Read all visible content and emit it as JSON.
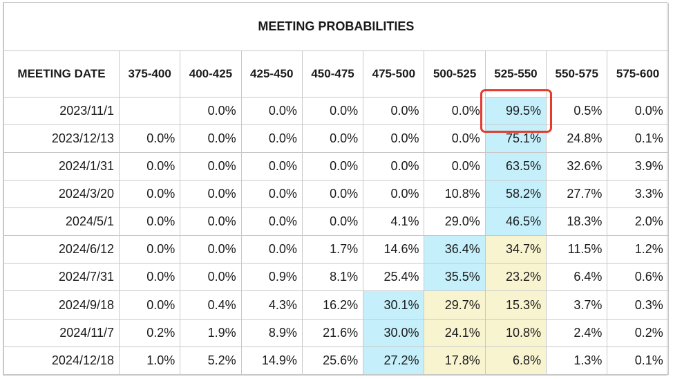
{
  "title": "MEETING PROBABILITIES",
  "columns": {
    "meeting_date": "MEETING DATE",
    "ranges": [
      "375-400",
      "400-425",
      "425-450",
      "450-475",
      "475-500",
      "500-525",
      "525-550",
      "550-575",
      "575-600"
    ]
  },
  "rows": [
    {
      "date": "2023/11/1",
      "cells": [
        "",
        "0.0%",
        "0.0%",
        "0.0%",
        "0.0%",
        "0.0%",
        "99.5%",
        "0.5%",
        "0.0%"
      ]
    },
    {
      "date": "2023/12/13",
      "cells": [
        "0.0%",
        "0.0%",
        "0.0%",
        "0.0%",
        "0.0%",
        "0.0%",
        "75.1%",
        "24.8%",
        "0.1%"
      ]
    },
    {
      "date": "2024/1/31",
      "cells": [
        "0.0%",
        "0.0%",
        "0.0%",
        "0.0%",
        "0.0%",
        "0.0%",
        "63.5%",
        "32.6%",
        "3.9%"
      ]
    },
    {
      "date": "2024/3/20",
      "cells": [
        "0.0%",
        "0.0%",
        "0.0%",
        "0.0%",
        "0.0%",
        "10.8%",
        "58.2%",
        "27.7%",
        "3.3%"
      ]
    },
    {
      "date": "2024/5/1",
      "cells": [
        "0.0%",
        "0.0%",
        "0.0%",
        "0.0%",
        "4.1%",
        "29.0%",
        "46.5%",
        "18.3%",
        "2.0%"
      ]
    },
    {
      "date": "2024/6/12",
      "cells": [
        "0.0%",
        "0.0%",
        "0.0%",
        "1.7%",
        "14.6%",
        "36.4%",
        "34.7%",
        "11.5%",
        "1.2%"
      ]
    },
    {
      "date": "2024/7/31",
      "cells": [
        "0.0%",
        "0.0%",
        "0.9%",
        "8.1%",
        "25.4%",
        "35.5%",
        "23.2%",
        "6.4%",
        "0.6%"
      ]
    },
    {
      "date": "2024/9/18",
      "cells": [
        "0.0%",
        "0.4%",
        "4.3%",
        "16.2%",
        "30.1%",
        "29.7%",
        "15.3%",
        "3.7%",
        "0.3%"
      ]
    },
    {
      "date": "2024/11/7",
      "cells": [
        "0.2%",
        "1.9%",
        "8.9%",
        "21.6%",
        "30.0%",
        "24.1%",
        "10.8%",
        "2.4%",
        "0.2%"
      ]
    },
    {
      "date": "2024/12/18",
      "cells": [
        "1.0%",
        "5.2%",
        "14.9%",
        "25.6%",
        "27.2%",
        "17.8%",
        "6.8%",
        "1.3%",
        "0.1%"
      ]
    }
  ],
  "shading": [
    [
      null,
      null,
      null,
      null,
      null,
      null,
      "cyan",
      null,
      null
    ],
    [
      null,
      null,
      null,
      null,
      null,
      null,
      "cyan",
      null,
      null
    ],
    [
      null,
      null,
      null,
      null,
      null,
      null,
      "cyan",
      null,
      null
    ],
    [
      null,
      null,
      null,
      null,
      null,
      null,
      "cyan",
      null,
      null
    ],
    [
      null,
      null,
      null,
      null,
      null,
      null,
      "cyan",
      null,
      null
    ],
    [
      null,
      null,
      null,
      null,
      null,
      "cyan",
      "yellow",
      null,
      null
    ],
    [
      null,
      null,
      null,
      null,
      null,
      "cyan",
      "yellow",
      null,
      null
    ],
    [
      null,
      null,
      null,
      null,
      "cyan",
      "yellow",
      "yellow",
      null,
      null
    ],
    [
      null,
      null,
      null,
      null,
      "cyan",
      "yellow",
      "yellow",
      null,
      null
    ],
    [
      null,
      null,
      null,
      null,
      "cyan",
      "yellow",
      "yellow",
      null,
      null
    ]
  ],
  "colors": {
    "cyan": "#c5f0fb",
    "yellow": "#f8f4d0",
    "highlight_border": "#e53a2e",
    "grid": "#c8c8c8"
  },
  "highlight": {
    "row": 0,
    "col": 6
  }
}
